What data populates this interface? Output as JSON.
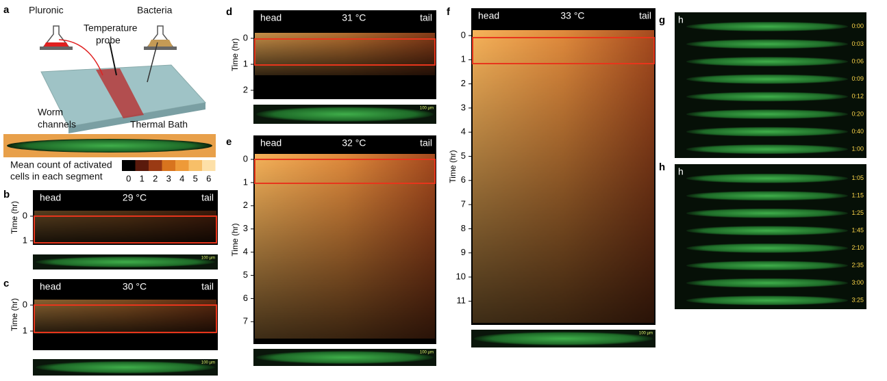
{
  "a": {
    "label": "a",
    "pluronic": "Pluronic",
    "bacteria": "Bacteria",
    "probe": [
      "Temperature",
      "probe"
    ],
    "channels": [
      "Worm",
      "channels"
    ],
    "bath": "Thermal Bath",
    "legend": [
      "Mean count of activated",
      "cells in each segment"
    ],
    "legend_ticks": [
      0,
      1,
      2,
      3,
      4,
      5,
      6
    ]
  },
  "b": {
    "label": "b",
    "head": "head",
    "temp": "29 °C",
    "tail": "tail",
    "ylabel": "Time (hr)",
    "yticks": [
      0,
      1
    ],
    "scale": "100 µm"
  },
  "c": {
    "label": "c",
    "head": "head",
    "temp": "30 °C",
    "tail": "tail",
    "ylabel": "Time (hr)",
    "yticks": [
      0,
      1
    ],
    "scale": "100 µm"
  },
  "d": {
    "label": "d",
    "head": "head",
    "temp": "31 °C",
    "tail": "tail",
    "ylabel": "Time (hr)",
    "yticks": [
      0,
      1,
      2
    ],
    "scale": "100 µm"
  },
  "e": {
    "label": "e",
    "head": "head",
    "temp": "32 °C",
    "tail": "tail",
    "ylabel": "Time (hr)",
    "yticks": [
      0,
      1,
      2,
      3,
      4,
      5,
      6,
      7
    ],
    "scale": "100 µm"
  },
  "f": {
    "label": "f",
    "head": "head",
    "temp": "33 °C",
    "tail": "tail",
    "ylabel": "Time (hr)",
    "yticks": [
      0,
      1,
      2,
      3,
      4,
      5,
      6,
      7,
      8,
      9,
      10,
      11
    ],
    "scale": "100 µm"
  },
  "g": {
    "label": "g",
    "inset": "h",
    "times": [
      "0:00",
      "0:03",
      "0:06",
      "0:09",
      "0:12",
      "0:20",
      "0:40",
      "1:00"
    ]
  },
  "h": {
    "label": "h",
    "inset": "h",
    "times": [
      "1:05",
      "1:15",
      "1:25",
      "1:45",
      "2:10",
      "2:35",
      "3:00",
      "3:25"
    ]
  }
}
